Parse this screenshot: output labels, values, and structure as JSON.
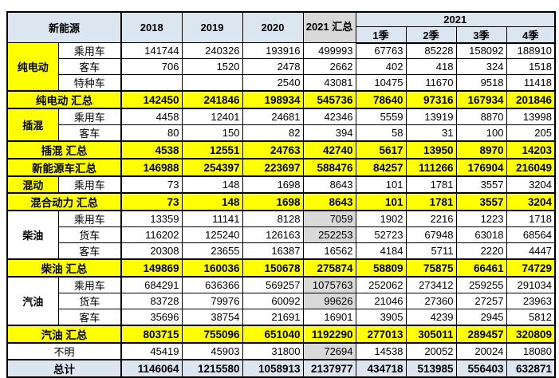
{
  "colors": {
    "header_blue": "#dce6f1",
    "highlight_yellow": "#ffff00",
    "muted_gray": "#d9d9d9",
    "number_text": "#595959"
  },
  "table": {
    "corner_label": "新能源",
    "year_headers": [
      "2018",
      "2019",
      "2020"
    ],
    "summary_header": "2021 汇总",
    "group_header": "2021",
    "quarter_headers": [
      "1季",
      "2季",
      "3季",
      "4季"
    ],
    "rows": [
      {
        "kind": "detail",
        "category": "纯电动",
        "category_style": "yellow",
        "category_rowspan": 3,
        "sub": "乘用车",
        "values": [
          "141744",
          "240326",
          "193916",
          "499993",
          "67763",
          "85228",
          "158092",
          "188910"
        ]
      },
      {
        "kind": "detail",
        "sub": "客车",
        "values": [
          "706",
          "1520",
          "2478",
          "2662",
          "402",
          "418",
          "324",
          "1518"
        ]
      },
      {
        "kind": "detail",
        "sub": "特种车",
        "values": [
          "",
          "",
          "2540",
          "43081",
          "10475",
          "11670",
          "9518",
          "11418"
        ]
      },
      {
        "kind": "summary",
        "label": "纯电动 汇总",
        "values": [
          "142450",
          "241846",
          "198934",
          "545736",
          "78640",
          "97316",
          "167934",
          "201846"
        ]
      },
      {
        "kind": "detail",
        "category": "插混",
        "category_style": "yellow",
        "category_rowspan": 2,
        "sub": "乘用车",
        "values": [
          "4458",
          "12401",
          "24681",
          "42346",
          "5559",
          "13919",
          "8870",
          "13998"
        ]
      },
      {
        "kind": "detail",
        "sub": "客车",
        "values": [
          "80",
          "150",
          "82",
          "394",
          "58",
          "31",
          "100",
          "205"
        ]
      },
      {
        "kind": "summary",
        "label": "插混 汇总",
        "values": [
          "4538",
          "12551",
          "24763",
          "42740",
          "5617",
          "13950",
          "8970",
          "14203"
        ]
      },
      {
        "kind": "summary",
        "label": "新能源车汇总",
        "values": [
          "146988",
          "254397",
          "223697",
          "588476",
          "84257",
          "111266",
          "176904",
          "216049"
        ]
      },
      {
        "kind": "detail",
        "category": "混动",
        "category_style": "yellow",
        "category_rowspan": 1,
        "sub": "乘用车",
        "values": [
          "73",
          "148",
          "1698",
          "8643",
          "101",
          "1781",
          "3557",
          "3204"
        ]
      },
      {
        "kind": "summary",
        "label": "混合动力 汇总",
        "values": [
          "73",
          "148",
          "1698",
          "8643",
          "101",
          "1781",
          "3557",
          "3204"
        ]
      },
      {
        "kind": "detail",
        "category": "柴油",
        "category_style": "white",
        "category_rowspan": 3,
        "sub": "乘用车",
        "values": [
          "13359",
          "11141",
          "8128",
          "7059",
          "1902",
          "2216",
          "1223",
          "1718"
        ],
        "gray_cols": [
          3
        ]
      },
      {
        "kind": "detail",
        "sub": "货车",
        "values": [
          "116202",
          "125240",
          "126163",
          "252253",
          "52723",
          "67948",
          "63018",
          "68564"
        ],
        "gray_cols": [
          3
        ]
      },
      {
        "kind": "detail",
        "sub": "客车",
        "values": [
          "20308",
          "23655",
          "16387",
          "16562",
          "4184",
          "5711",
          "2220",
          "4447"
        ]
      },
      {
        "kind": "summary",
        "label": "柴油 汇总",
        "values": [
          "149869",
          "160036",
          "150678",
          "275874",
          "58809",
          "75875",
          "66461",
          "74729"
        ]
      },
      {
        "kind": "detail",
        "category": "汽油",
        "category_style": "white",
        "category_rowspan": 3,
        "sub": "乘用车",
        "values": [
          "684291",
          "636366",
          "569257",
          "1075763",
          "252062",
          "273412",
          "259255",
          "291034"
        ],
        "gray_cols": [
          3
        ]
      },
      {
        "kind": "detail",
        "sub": "货车",
        "values": [
          "83728",
          "79976",
          "60092",
          "99626",
          "21046",
          "27360",
          "27257",
          "23963"
        ],
        "gray_cols": [
          3
        ]
      },
      {
        "kind": "detail",
        "sub": "客车",
        "values": [
          "35696",
          "38754",
          "21691",
          "16901",
          "3905",
          "4239",
          "2945",
          "5812"
        ]
      },
      {
        "kind": "summary",
        "label": "汽油 汇总",
        "values": [
          "803715",
          "755096",
          "651040",
          "1192290",
          "277013",
          "305011",
          "289457",
          "320809"
        ]
      },
      {
        "kind": "plain",
        "label": "不明",
        "values": [
          "45419",
          "45903",
          "31800",
          "72694",
          "14538",
          "20052",
          "20024",
          "18080"
        ],
        "gray_cols": [
          3
        ]
      },
      {
        "kind": "total",
        "label": "总计",
        "values": [
          "1146064",
          "1215580",
          "1058913",
          "2137977",
          "434718",
          "513985",
          "556403",
          "632871"
        ]
      }
    ]
  }
}
